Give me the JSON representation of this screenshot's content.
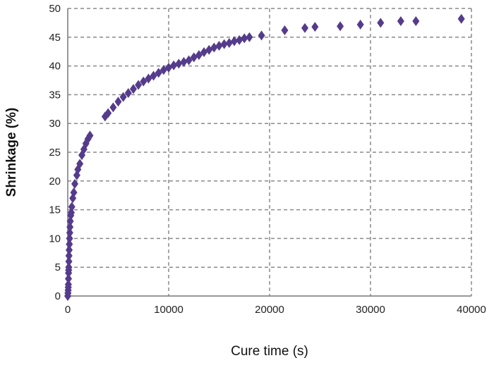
{
  "chart_data": {
    "type": "scatter",
    "title": "",
    "xlabel": "Cure time (s)",
    "ylabel": "Shrinkage (%)",
    "xlim": [
      0,
      40000
    ],
    "ylim": [
      0,
      50
    ],
    "xticks": [
      "0",
      "10000",
      "20000",
      "30000",
      "40000"
    ],
    "yticks": [
      "0",
      "5",
      "10",
      "15",
      "20",
      "25",
      "30",
      "35",
      "40",
      "45",
      "50"
    ],
    "grid": "dashed, major",
    "marker": "diamond",
    "color": "#553b8c",
    "x": [
      0,
      20,
      40,
      50,
      60,
      70,
      80,
      90,
      100,
      110,
      120,
      140,
      160,
      180,
      200,
      220,
      250,
      300,
      350,
      400,
      500,
      600,
      700,
      900,
      1000,
      1200,
      1400,
      1600,
      1800,
      2000,
      2200,
      3700,
      4000,
      4500,
      5000,
      5500,
      6000,
      6500,
      7000,
      7500,
      8000,
      8500,
      9000,
      9500,
      10000,
      10500,
      11000,
      11500,
      12000,
      12500,
      13000,
      13500,
      14000,
      14500,
      15000,
      15500,
      16000,
      16500,
      17000,
      17500,
      18000,
      19200,
      21500,
      23500,
      24500,
      27000,
      29000,
      31000,
      33000,
      34500,
      39000
    ],
    "y": [
      0,
      0.5,
      1,
      1.5,
      2,
      3,
      4,
      4.5,
      5,
      6,
      7,
      8,
      9,
      10,
      11,
      12,
      13,
      14,
      14.5,
      15.5,
      17,
      18,
      19.5,
      21,
      22,
      23,
      24.5,
      25.5,
      26.5,
      27.3,
      27.9,
      31.2,
      31.8,
      32.8,
      33.8,
      34.6,
      35.3,
      36,
      36.7,
      37.3,
      37.8,
      38.3,
      38.8,
      39.3,
      39.7,
      40.1,
      40.4,
      40.7,
      41,
      41.5,
      41.9,
      42.4,
      42.8,
      43.2,
      43.5,
      43.8,
      44,
      44.3,
      44.5,
      44.8,
      45,
      45.3,
      46.2,
      46.6,
      46.8,
      46.9,
      47.2,
      47.5,
      47.8,
      47.8,
      48.2
    ]
  }
}
